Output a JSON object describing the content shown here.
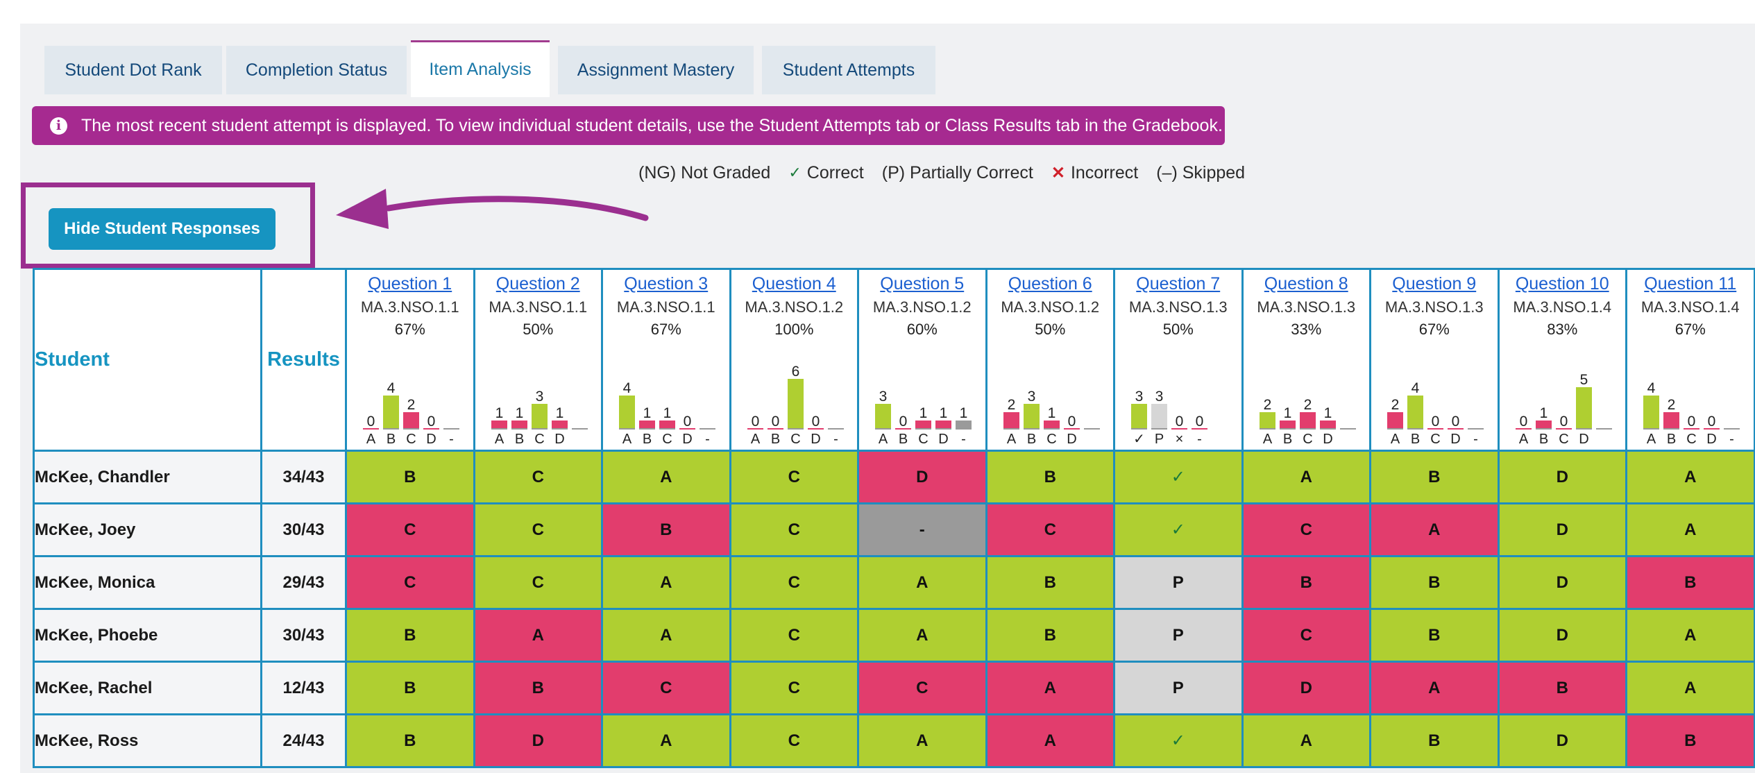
{
  "tabs": [
    "Student Dot Rank",
    "Completion Status",
    "Item Analysis",
    "Assignment Mastery",
    "Student Attempts"
  ],
  "active_tab": "Item Analysis",
  "banner": {
    "icon": "info-icon",
    "text": "The most recent student attempt is displayed. To view individual student details, use the Student Attempts tab or Class Results tab in the Gradebook."
  },
  "legend": {
    "ng": "(NG) Not Graded",
    "correct": "Correct",
    "partial": "(P) Partially Correct",
    "incorrect": "Incorrect",
    "skipped": "(–) Skipped",
    "check_symbol": "✓",
    "x_symbol": "✕"
  },
  "hide_button": "Hide Student Responses",
  "table": {
    "student_header": "Student",
    "results_header": "Results",
    "questions": [
      {
        "title": "Question 1",
        "standard": "MA.3.NSO.1.1",
        "percent": "67%",
        "labels": [
          "A",
          "B",
          "C",
          "D",
          "-"
        ],
        "counts": [
          0,
          4,
          2,
          0,
          null
        ],
        "correct": [
          false,
          true,
          false,
          false,
          false
        ]
      },
      {
        "title": "Question 2",
        "standard": "MA.3.NSO.1.1",
        "percent": "50%",
        "labels": [
          "A",
          "B",
          "C",
          "D",
          ""
        ],
        "counts": [
          1,
          1,
          3,
          1,
          null
        ],
        "correct": [
          false,
          false,
          true,
          false,
          false
        ]
      },
      {
        "title": "Question 3",
        "standard": "MA.3.NSO.1.1",
        "percent": "67%",
        "labels": [
          "A",
          "B",
          "C",
          "D",
          "-"
        ],
        "counts": [
          4,
          1,
          1,
          0,
          null
        ],
        "correct": [
          true,
          false,
          false,
          false,
          false
        ]
      },
      {
        "title": "Question 4",
        "standard": "MA.3.NSO.1.2",
        "percent": "100%",
        "labels": [
          "A",
          "B",
          "C",
          "D",
          "-"
        ],
        "counts": [
          0,
          0,
          6,
          0,
          null
        ],
        "correct": [
          false,
          false,
          true,
          false,
          false
        ]
      },
      {
        "title": "Question 5",
        "standard": "MA.3.NSO.1.2",
        "percent": "60%",
        "labels": [
          "A",
          "B",
          "C",
          "D",
          "-"
        ],
        "counts": [
          3,
          0,
          1,
          1,
          1
        ],
        "correct": [
          true,
          false,
          false,
          false,
          false
        ]
      },
      {
        "title": "Question 6",
        "standard": "MA.3.NSO.1.2",
        "percent": "50%",
        "labels": [
          "A",
          "B",
          "C",
          "D",
          ""
        ],
        "counts": [
          2,
          3,
          1,
          0,
          null
        ],
        "correct": [
          false,
          true,
          false,
          false,
          false
        ]
      },
      {
        "title": "Question 7",
        "standard": "MA.3.NSO.1.3",
        "percent": "50%",
        "labels": [
          "✓",
          "P",
          "×",
          "-"
        ],
        "counts": [
          3,
          3,
          0,
          0
        ],
        "correct": [
          true,
          false,
          false,
          false
        ],
        "partial": [
          false,
          true,
          false,
          false
        ]
      },
      {
        "title": "Question 8",
        "standard": "MA.3.NSO.1.3",
        "percent": "33%",
        "labels": [
          "A",
          "B",
          "C",
          "D",
          ""
        ],
        "counts": [
          2,
          1,
          2,
          1,
          null
        ],
        "correct": [
          true,
          false,
          false,
          false,
          false
        ]
      },
      {
        "title": "Question 9",
        "standard": "MA.3.NSO.1.3",
        "percent": "67%",
        "labels": [
          "A",
          "B",
          "C",
          "D",
          "-"
        ],
        "counts": [
          2,
          4,
          0,
          0,
          null
        ],
        "correct": [
          false,
          true,
          false,
          false,
          false
        ]
      },
      {
        "title": "Question 10",
        "standard": "MA.3.NSO.1.4",
        "percent": "83%",
        "labels": [
          "A",
          "B",
          "C",
          "D",
          ""
        ],
        "counts": [
          0,
          1,
          0,
          5,
          null
        ],
        "correct": [
          false,
          false,
          false,
          true,
          false
        ]
      },
      {
        "title": "Question 11",
        "standard": "MA.3.NSO.1.4",
        "percent": "67%",
        "labels": [
          "A",
          "B",
          "C",
          "D",
          "-"
        ],
        "counts": [
          4,
          2,
          0,
          0,
          null
        ],
        "correct": [
          true,
          false,
          false,
          false,
          false
        ]
      }
    ],
    "students": [
      {
        "name": "McKee, Chandler",
        "result": "34/43",
        "answers": [
          [
            "B",
            "c"
          ],
          [
            "C",
            "c"
          ],
          [
            "A",
            "c"
          ],
          [
            "C",
            "c"
          ],
          [
            "D",
            "w"
          ],
          [
            "B",
            "c"
          ],
          [
            "✓",
            "c"
          ],
          [
            "A",
            "c"
          ],
          [
            "B",
            "c"
          ],
          [
            "D",
            "c"
          ],
          [
            "A",
            "c"
          ]
        ]
      },
      {
        "name": "McKee, Joey",
        "result": "30/43",
        "answers": [
          [
            "C",
            "w"
          ],
          [
            "C",
            "c"
          ],
          [
            "B",
            "w"
          ],
          [
            "C",
            "c"
          ],
          [
            "-",
            "s"
          ],
          [
            "C",
            "w"
          ],
          [
            "✓",
            "c"
          ],
          [
            "C",
            "w"
          ],
          [
            "A",
            "w"
          ],
          [
            "D",
            "c"
          ],
          [
            "A",
            "c"
          ]
        ]
      },
      {
        "name": "McKee, Monica",
        "result": "29/43",
        "answers": [
          [
            "C",
            "w"
          ],
          [
            "C",
            "c"
          ],
          [
            "A",
            "c"
          ],
          [
            "C",
            "c"
          ],
          [
            "A",
            "c"
          ],
          [
            "B",
            "c"
          ],
          [
            "P",
            "p"
          ],
          [
            "B",
            "w"
          ],
          [
            "B",
            "c"
          ],
          [
            "D",
            "c"
          ],
          [
            "B",
            "w"
          ]
        ]
      },
      {
        "name": "McKee, Phoebe",
        "result": "30/43",
        "answers": [
          [
            "B",
            "c"
          ],
          [
            "A",
            "w"
          ],
          [
            "A",
            "c"
          ],
          [
            "C",
            "c"
          ],
          [
            "A",
            "c"
          ],
          [
            "B",
            "c"
          ],
          [
            "P",
            "p"
          ],
          [
            "C",
            "w"
          ],
          [
            "B",
            "c"
          ],
          [
            "D",
            "c"
          ],
          [
            "A",
            "c"
          ]
        ]
      },
      {
        "name": "McKee, Rachel",
        "result": "12/43",
        "answers": [
          [
            "B",
            "c"
          ],
          [
            "B",
            "w"
          ],
          [
            "C",
            "w"
          ],
          [
            "C",
            "c"
          ],
          [
            "C",
            "w"
          ],
          [
            "A",
            "w"
          ],
          [
            "P",
            "p"
          ],
          [
            "D",
            "w"
          ],
          [
            "A",
            "w"
          ],
          [
            "B",
            "w"
          ],
          [
            "A",
            "c"
          ]
        ]
      },
      {
        "name": "McKee, Ross",
        "result": "24/43",
        "answers": [
          [
            "B",
            "c"
          ],
          [
            "D",
            "w"
          ],
          [
            "A",
            "c"
          ],
          [
            "C",
            "c"
          ],
          [
            "A",
            "c"
          ],
          [
            "A",
            "w"
          ],
          [
            "✓",
            "c"
          ],
          [
            "A",
            "c"
          ],
          [
            "B",
            "c"
          ],
          [
            "D",
            "c"
          ],
          [
            "B",
            "w"
          ]
        ]
      }
    ]
  },
  "colors": {
    "correct": "#afcf31",
    "incorrect": "#e23d6d",
    "partial": "#d6d6d6",
    "skipped": "#9a9a9a",
    "accent": "#1694c1",
    "banner": "#a62a90"
  }
}
